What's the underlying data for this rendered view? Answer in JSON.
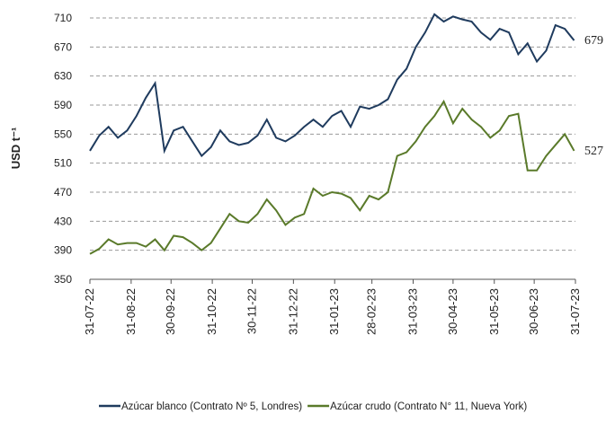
{
  "chart_data": {
    "type": "line",
    "ylabel": "USD t⁻¹",
    "x": [
      "31-07-22",
      "07-08-22",
      "14-08-22",
      "21-08-22",
      "28-08-22",
      "04-09-22",
      "11-09-22",
      "18-09-22",
      "25-09-22",
      "02-10-22",
      "09-10-22",
      "16-10-22",
      "23-10-22",
      "30-10-22",
      "06-11-22",
      "13-11-22",
      "20-11-22",
      "27-11-22",
      "04-12-22",
      "11-12-22",
      "18-12-22",
      "25-12-22",
      "01-01-23",
      "08-01-23",
      "15-01-23",
      "22-01-23",
      "29-01-23",
      "05-02-23",
      "12-02-23",
      "19-02-23",
      "26-02-23",
      "05-03-23",
      "12-03-23",
      "19-03-23",
      "26-03-23",
      "02-04-23",
      "09-04-23",
      "16-04-23",
      "23-04-23",
      "30-04-23",
      "07-05-23",
      "14-05-23",
      "21-05-23",
      "28-05-23",
      "04-06-23",
      "11-06-23",
      "18-06-23",
      "25-06-23",
      "02-07-23",
      "09-07-23",
      "16-07-23",
      "23-07-23",
      "30-07-23"
    ],
    "series": [
      {
        "name": "Azúcar blanco (Contrato Nº 5, Londres)",
        "color": "#1f3b5e",
        "values": [
          527,
          548,
          560,
          545,
          555,
          575,
          600,
          620,
          527,
          555,
          560,
          540,
          520,
          532,
          555,
          540,
          535,
          538,
          548,
          570,
          545,
          540,
          548,
          560,
          570,
          560,
          575,
          582,
          560,
          588,
          585,
          590,
          598,
          625,
          640,
          670,
          690,
          715,
          705,
          712,
          708,
          705,
          690,
          680,
          695,
          690,
          660,
          675,
          650,
          665,
          700,
          695,
          679
        ]
      },
      {
        "name": "Azúcar crudo (Contrato N° 11, Nueva York)",
        "color": "#5a7a2a",
        "values": [
          385,
          392,
          405,
          398,
          400,
          400,
          395,
          405,
          390,
          410,
          408,
          400,
          390,
          400,
          420,
          440,
          430,
          428,
          440,
          460,
          445,
          425,
          435,
          440,
          475,
          465,
          470,
          468,
          462,
          445,
          465,
          460,
          470,
          520,
          525,
          540,
          560,
          575,
          595,
          565,
          585,
          570,
          560,
          545,
          555,
          575,
          578,
          500,
          500,
          520,
          535,
          550,
          527
        ]
      }
    ],
    "xticks": [
      "31-07-22",
      "31-08-22",
      "30-09-22",
      "31-10-22",
      "30-11-22",
      "31-12-22",
      "31-01-23",
      "28-02-23",
      "31-03-23",
      "30-04-23",
      "31-05-23",
      "30-06-23",
      "31-07-23"
    ],
    "ylim": [
      350,
      710
    ],
    "yticks": [
      350,
      390,
      430,
      470,
      510,
      550,
      590,
      630,
      670,
      710
    ],
    "grid": true,
    "legend": "bottom"
  }
}
